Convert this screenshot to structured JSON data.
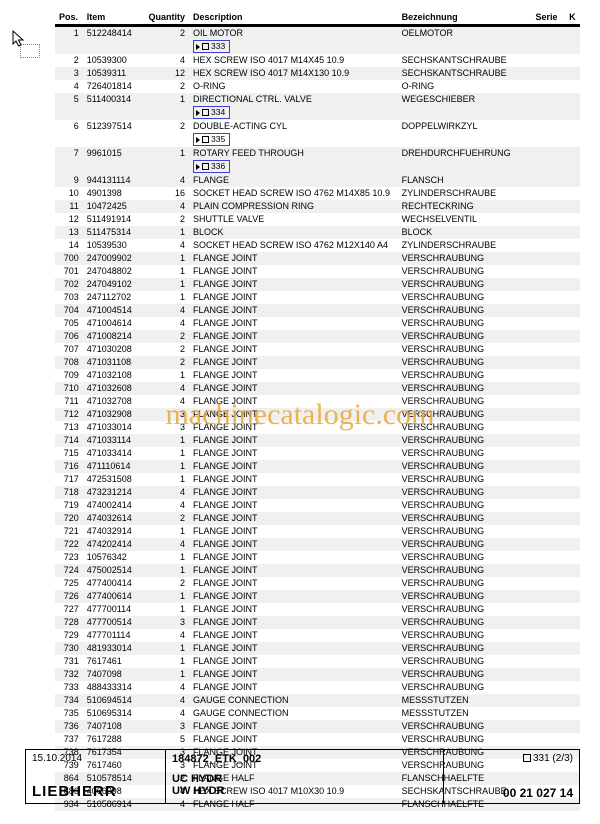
{
  "cursor": true,
  "headers": {
    "pos": "Pos.",
    "item": "Item",
    "qty": "Quantity",
    "desc": "Description",
    "bez": "Bezeichnung",
    "serie": "Serie",
    "k": "K"
  },
  "rows": [
    {
      "pos": "1",
      "item": "512248414",
      "qty": "2",
      "desc": "OIL MOTOR",
      "bez": "OELMOTOR",
      "sub": "333",
      "shade": true
    },
    {
      "pos": "2",
      "item": "10539300",
      "qty": "4",
      "desc": "HEX SCREW ISO 4017 M14X45 10.9",
      "bez": "SECHSKANTSCHRAUBE"
    },
    {
      "pos": "3",
      "item": "10539311",
      "qty": "12",
      "desc": "HEX SCREW ISO 4017 M14X130 10.9",
      "bez": "SECHSKANTSCHRAUBE",
      "shade": true
    },
    {
      "pos": "4",
      "item": "726401814",
      "qty": "2",
      "desc": "O-RING",
      "bez": "O-RING"
    },
    {
      "pos": "5",
      "item": "511400314",
      "qty": "1",
      "desc": "DIRECTIONAL CTRL. VALVE",
      "bez": "WEGESCHIEBER",
      "sub": "334",
      "shade": true
    },
    {
      "pos": "6",
      "item": "512397514",
      "qty": "2",
      "desc": "DOUBLE-ACTING CYL",
      "bez": "DOPPELWIRKZYL",
      "sub": "335"
    },
    {
      "pos": "7",
      "item": "9961015",
      "qty": "1",
      "desc": "ROTARY FEED THROUGH",
      "bez": "DREHDURCHFUEHRUNG",
      "sub": "336",
      "shade": true
    },
    {
      "pos": "9",
      "item": "944131114",
      "qty": "4",
      "desc": "FLANGE",
      "bez": "FLANSCH",
      "shade": true
    },
    {
      "pos": "10",
      "item": "4901398",
      "qty": "16",
      "desc": "SOCKET HEAD SCREW ISO 4762 M14X85 10.9",
      "bez": "ZYLINDERSCHRAUBE"
    },
    {
      "pos": "11",
      "item": "10472425",
      "qty": "4",
      "desc": "PLAIN COMPRESSION RING",
      "bez": "RECHTECKRING",
      "shade": true
    },
    {
      "pos": "12",
      "item": "511491914",
      "qty": "2",
      "desc": "SHUTTLE VALVE",
      "bez": "WECHSELVENTIL"
    },
    {
      "pos": "13",
      "item": "511475314",
      "qty": "1",
      "desc": "BLOCK",
      "bez": "BLOCK",
      "shade": true
    },
    {
      "pos": "14",
      "item": "10539530",
      "qty": "4",
      "desc": "SOCKET HEAD SCREW ISO 4762 M12X140 A4",
      "bez": "ZYLINDERSCHRAUBE"
    },
    {
      "pos": "700",
      "item": "247009902",
      "qty": "1",
      "desc": "FLANGE JOINT",
      "bez": "VERSCHRAUBUNG",
      "shade": true
    },
    {
      "pos": "701",
      "item": "247048802",
      "qty": "1",
      "desc": "FLANGE JOINT",
      "bez": "VERSCHRAUBUNG"
    },
    {
      "pos": "702",
      "item": "247049102",
      "qty": "1",
      "desc": "FLANGE JOINT",
      "bez": "VERSCHRAUBUNG",
      "shade": true
    },
    {
      "pos": "703",
      "item": "247112702",
      "qty": "1",
      "desc": "FLANGE JOINT",
      "bez": "VERSCHRAUBUNG"
    },
    {
      "pos": "704",
      "item": "471004514",
      "qty": "4",
      "desc": "FLANGE JOINT",
      "bez": "VERSCHRAUBUNG",
      "shade": true
    },
    {
      "pos": "705",
      "item": "471004614",
      "qty": "4",
      "desc": "FLANGE JOINT",
      "bez": "VERSCHRAUBUNG"
    },
    {
      "pos": "706",
      "item": "471008214",
      "qty": "2",
      "desc": "FLANGE JOINT",
      "bez": "VERSCHRAUBUNG",
      "shade": true
    },
    {
      "pos": "707",
      "item": "471030208",
      "qty": "2",
      "desc": "FLANGE JOINT",
      "bez": "VERSCHRAUBUNG"
    },
    {
      "pos": "708",
      "item": "471031108",
      "qty": "2",
      "desc": "FLANGE JOINT",
      "bez": "VERSCHRAUBUNG",
      "shade": true
    },
    {
      "pos": "709",
      "item": "471032108",
      "qty": "1",
      "desc": "FLANGE JOINT",
      "bez": "VERSCHRAUBUNG"
    },
    {
      "pos": "710",
      "item": "471032608",
      "qty": "4",
      "desc": "FLANGE JOINT",
      "bez": "VERSCHRAUBUNG",
      "shade": true
    },
    {
      "pos": "711",
      "item": "471032708",
      "qty": "4",
      "desc": "FLANGE JOINT",
      "bez": "VERSCHRAUBUNG"
    },
    {
      "pos": "712",
      "item": "471032908",
      "qty": "3",
      "desc": "FLANGE JOINT",
      "bez": "VERSCHRAUBUNG",
      "shade": true
    },
    {
      "pos": "713",
      "item": "471033014",
      "qty": "3",
      "desc": "FLANGE JOINT",
      "bez": "VERSCHRAUBUNG"
    },
    {
      "pos": "714",
      "item": "471033114",
      "qty": "1",
      "desc": "FLANGE JOINT",
      "bez": "VERSCHRAUBUNG",
      "shade": true
    },
    {
      "pos": "715",
      "item": "471033414",
      "qty": "1",
      "desc": "FLANGE JOINT",
      "bez": "VERSCHRAUBUNG"
    },
    {
      "pos": "716",
      "item": "471110614",
      "qty": "1",
      "desc": "FLANGE JOINT",
      "bez": "VERSCHRAUBUNG",
      "shade": true
    },
    {
      "pos": "717",
      "item": "472531508",
      "qty": "1",
      "desc": "FLANGE JOINT",
      "bez": "VERSCHRAUBUNG"
    },
    {
      "pos": "718",
      "item": "473231214",
      "qty": "4",
      "desc": "FLANGE JOINT",
      "bez": "VERSCHRAUBUNG",
      "shade": true
    },
    {
      "pos": "719",
      "item": "474002414",
      "qty": "4",
      "desc": "FLANGE JOINT",
      "bez": "VERSCHRAUBUNG"
    },
    {
      "pos": "720",
      "item": "474032614",
      "qty": "2",
      "desc": "FLANGE JOINT",
      "bez": "VERSCHRAUBUNG",
      "shade": true
    },
    {
      "pos": "721",
      "item": "474032914",
      "qty": "1",
      "desc": "FLANGE JOINT",
      "bez": "VERSCHRAUBUNG"
    },
    {
      "pos": "722",
      "item": "474202414",
      "qty": "4",
      "desc": "FLANGE JOINT",
      "bez": "VERSCHRAUBUNG",
      "shade": true
    },
    {
      "pos": "723",
      "item": "10576342",
      "qty": "1",
      "desc": "FLANGE JOINT",
      "bez": "VERSCHRAUBUNG"
    },
    {
      "pos": "724",
      "item": "475002514",
      "qty": "1",
      "desc": "FLANGE JOINT",
      "bez": "VERSCHRAUBUNG",
      "shade": true
    },
    {
      "pos": "725",
      "item": "477400414",
      "qty": "2",
      "desc": "FLANGE JOINT",
      "bez": "VERSCHRAUBUNG"
    },
    {
      "pos": "726",
      "item": "477400614",
      "qty": "1",
      "desc": "FLANGE JOINT",
      "bez": "VERSCHRAUBUNG",
      "shade": true
    },
    {
      "pos": "727",
      "item": "477700114",
      "qty": "1",
      "desc": "FLANGE JOINT",
      "bez": "VERSCHRAUBUNG"
    },
    {
      "pos": "728",
      "item": "477700514",
      "qty": "3",
      "desc": "FLANGE JOINT",
      "bez": "VERSCHRAUBUNG",
      "shade": true
    },
    {
      "pos": "729",
      "item": "477701114",
      "qty": "4",
      "desc": "FLANGE JOINT",
      "bez": "VERSCHRAUBUNG"
    },
    {
      "pos": "730",
      "item": "481933014",
      "qty": "1",
      "desc": "FLANGE JOINT",
      "bez": "VERSCHRAUBUNG",
      "shade": true
    },
    {
      "pos": "731",
      "item": "7617461",
      "qty": "1",
      "desc": "FLANGE JOINT",
      "bez": "VERSCHRAUBUNG"
    },
    {
      "pos": "732",
      "item": "7407098",
      "qty": "1",
      "desc": "FLANGE JOINT",
      "bez": "VERSCHRAUBUNG",
      "shade": true
    },
    {
      "pos": "733",
      "item": "488433314",
      "qty": "4",
      "desc": "FLANGE JOINT",
      "bez": "VERSCHRAUBUNG"
    },
    {
      "pos": "734",
      "item": "510694514",
      "qty": "4",
      "desc": "GAUGE CONNECTION",
      "bez": "MESSSTUTZEN",
      "shade": true
    },
    {
      "pos": "735",
      "item": "510695314",
      "qty": "4",
      "desc": "GAUGE CONNECTION",
      "bez": "MESSSTUTZEN"
    },
    {
      "pos": "736",
      "item": "7407108",
      "qty": "3",
      "desc": "FLANGE JOINT",
      "bez": "VERSCHRAUBUNG",
      "shade": true
    },
    {
      "pos": "737",
      "item": "7617288",
      "qty": "5",
      "desc": "FLANGE JOINT",
      "bez": "VERSCHRAUBUNG"
    },
    {
      "pos": "738",
      "item": "7617354",
      "qty": "3",
      "desc": "FLANGE JOINT",
      "bez": "VERSCHRAUBUNG",
      "shade": true
    },
    {
      "pos": "739",
      "item": "7617460",
      "qty": "3",
      "desc": "FLANGE JOINT",
      "bez": "VERSCHRAUBUNG"
    },
    {
      "pos": "864",
      "item": "510578514",
      "qty": "2",
      "desc": "FLANGE HALF",
      "bez": "FLANSCHHAELFTE",
      "shade": true
    },
    {
      "pos": "886",
      "item": "4066098",
      "qty": "4",
      "desc": "HEX SCREW ISO 4017 M10X30 10.9",
      "bez": "SECHSKANTSCHRAUBE"
    },
    {
      "pos": "934",
      "item": "510586914",
      "qty": "4",
      "desc": "FLANGE HALF",
      "bez": "FLANSCHHAELFTE",
      "shade": true
    }
  ],
  "footer": {
    "date": "15.10.2014",
    "brand": "LIEBHERR",
    "doc_id": "184872_ETK_002",
    "title1": "UC HYDR",
    "title2": "UW HYDR",
    "page_ref": "331 (2/3)",
    "code": "00 21 027 14"
  },
  "watermark": "machinecatalogic.com"
}
